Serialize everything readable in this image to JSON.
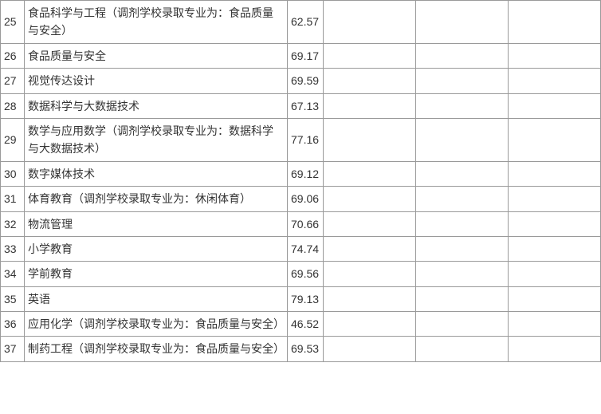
{
  "table": {
    "rows": [
      {
        "idx": "25",
        "name": "食品科学与工程（调剂学校录取专业为：食品质量与安全）",
        "val": "62.57",
        "c4": "",
        "c5": "",
        "c6": ""
      },
      {
        "idx": "26",
        "name": "食品质量与安全",
        "val": "69.17",
        "c4": "",
        "c5": "",
        "c6": ""
      },
      {
        "idx": "27",
        "name": "视觉传达设计",
        "val": "69.59",
        "c4": "",
        "c5": "",
        "c6": ""
      },
      {
        "idx": "28",
        "name": "数据科学与大数据技术",
        "val": "67.13",
        "c4": "",
        "c5": "",
        "c6": ""
      },
      {
        "idx": "29",
        "name": "数学与应用数学（调剂学校录取专业为：数据科学与大数据技术）",
        "val": "77.16",
        "c4": "",
        "c5": "",
        "c6": ""
      },
      {
        "idx": "30",
        "name": "数字媒体技术",
        "val": "69.12",
        "c4": "",
        "c5": "",
        "c6": ""
      },
      {
        "idx": "31",
        "name": "体育教育（调剂学校录取专业为：休闲体育）",
        "val": "69.06",
        "c4": "",
        "c5": "",
        "c6": ""
      },
      {
        "idx": "32",
        "name": "物流管理",
        "val": "70.66",
        "c4": "",
        "c5": "",
        "c6": ""
      },
      {
        "idx": "33",
        "name": "小学教育",
        "val": "74.74",
        "c4": "",
        "c5": "",
        "c6": ""
      },
      {
        "idx": "34",
        "name": "学前教育",
        "val": "69.56",
        "c4": "",
        "c5": "",
        "c6": ""
      },
      {
        "idx": "35",
        "name": "英语",
        "val": "79.13",
        "c4": "",
        "c5": "",
        "c6": ""
      },
      {
        "idx": "36",
        "name": "应用化学（调剂学校录取专业为：食品质量与安全）",
        "val": "46.52",
        "c4": "",
        "c5": "",
        "c6": ""
      },
      {
        "idx": "37",
        "name": "制药工程（调剂学校录取专业为：食品质量与安全）",
        "val": "69.53",
        "c4": "",
        "c5": "",
        "c6": ""
      }
    ]
  }
}
